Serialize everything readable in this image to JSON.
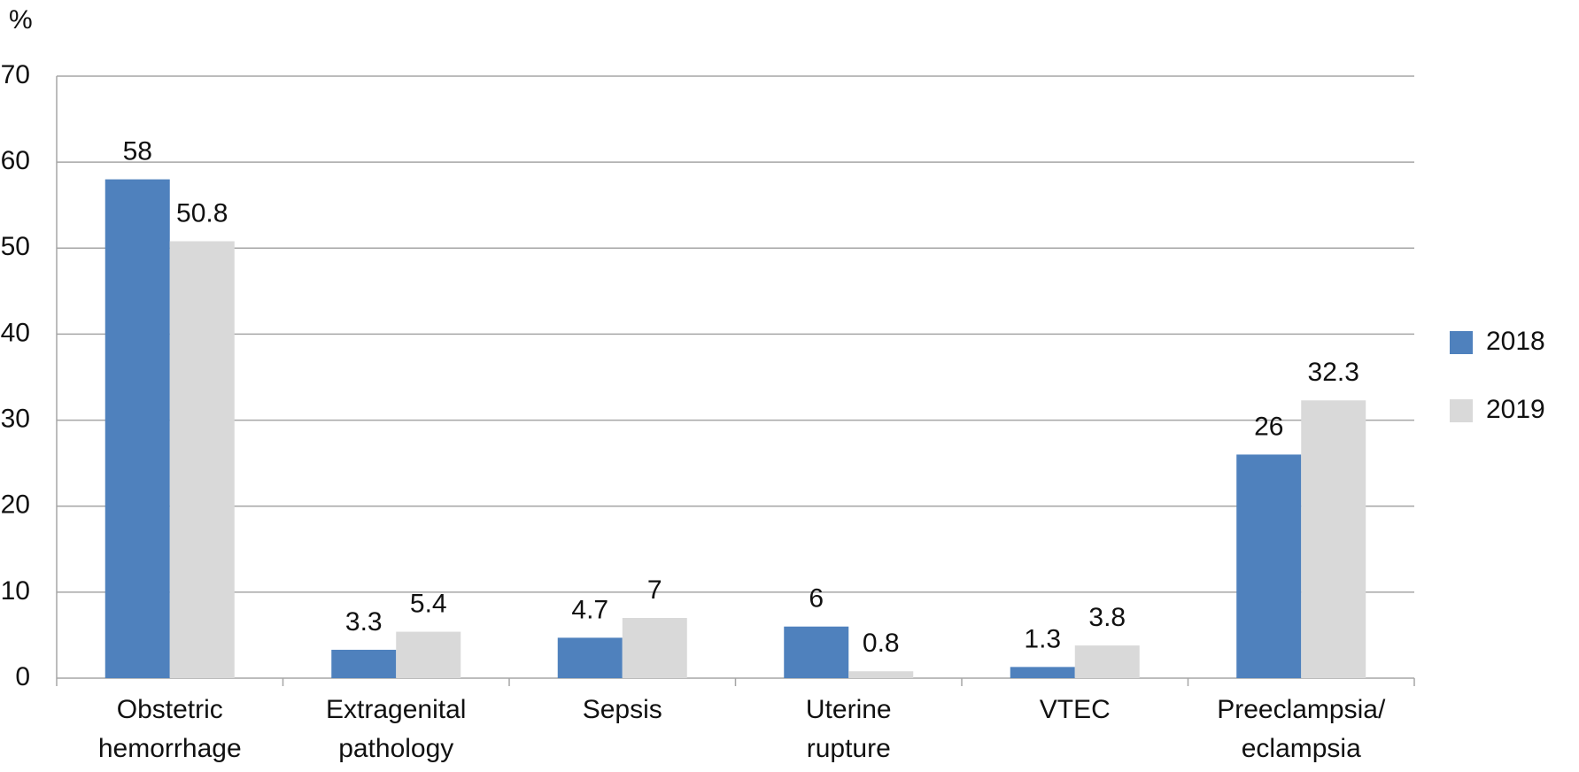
{
  "chart_data": {
    "type": "bar",
    "y_label": "%",
    "categories": [
      [
        "Obstetric",
        "hemorrhage"
      ],
      [
        "Extragenital",
        "pathology"
      ],
      [
        "Sepsis"
      ],
      [
        "Uterine",
        "rupture"
      ],
      [
        "VTEC"
      ],
      [
        "Preeclampsia/",
        "eclampsia"
      ]
    ],
    "series": [
      {
        "name": "2018",
        "color": "#4f81bd",
        "values": [
          58,
          3.3,
          4.7,
          6,
          1.3,
          26
        ]
      },
      {
        "name": "2019",
        "color": "#d9d9d9",
        "values": [
          50.8,
          5.4,
          7,
          0.8,
          3.8,
          32.3
        ]
      }
    ],
    "ylim": [
      0,
      70
    ],
    "yticks": [
      0,
      10,
      20,
      30,
      40,
      50,
      60,
      70
    ],
    "grid": true,
    "legend": "right"
  }
}
